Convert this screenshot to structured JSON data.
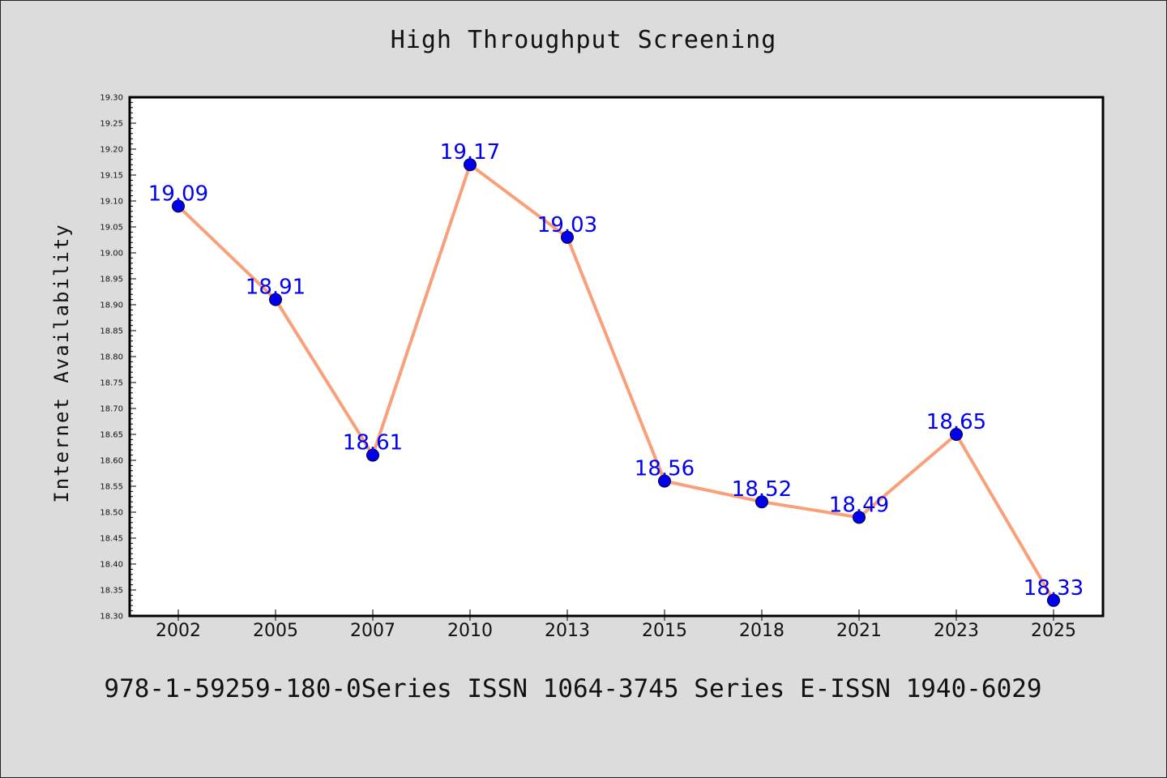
{
  "chart_data": {
    "type": "line",
    "title": "High Throughput Screening",
    "xlabel": "",
    "ylabel": "Internet Availability",
    "categories": [
      "2002",
      "2005",
      "2007",
      "2010",
      "2013",
      "2015",
      "2018",
      "2021",
      "2023",
      "2025"
    ],
    "series": [
      {
        "values": [
          19.09,
          18.91,
          18.61,
          19.17,
          19.03,
          18.56,
          18.52,
          18.49,
          18.65,
          18.33
        ],
        "line_color": "#f9a07a",
        "marker_color": "#0000ee"
      }
    ],
    "data_labels": [
      "19.09",
      "18.91",
      "18.61",
      "19.17",
      "19.03",
      "18.56",
      "18.52",
      "18.49",
      "18.65",
      "18.33"
    ],
    "ylim": [
      18.3,
      19.3
    ],
    "y_ticks": [
      "18.30",
      "18.35",
      "18.40",
      "18.45",
      "18.50",
      "18.55",
      "18.60",
      "18.65",
      "18.70",
      "18.75",
      "18.80",
      "18.85",
      "18.90",
      "18.95",
      "19.00",
      "19.05",
      "19.10",
      "19.15",
      "19.20",
      "19.25",
      "19.30"
    ],
    "grid": false,
    "legend": "none",
    "label_color": "#0000ee"
  },
  "footer": {
    "text": "978-1-59259-180-0Series ISSN 1064-3745 Series E-ISSN 1940-6029"
  },
  "colors": {
    "background": "#dcdcdc",
    "plot_background": "#ffffff",
    "axis": "#000000"
  }
}
